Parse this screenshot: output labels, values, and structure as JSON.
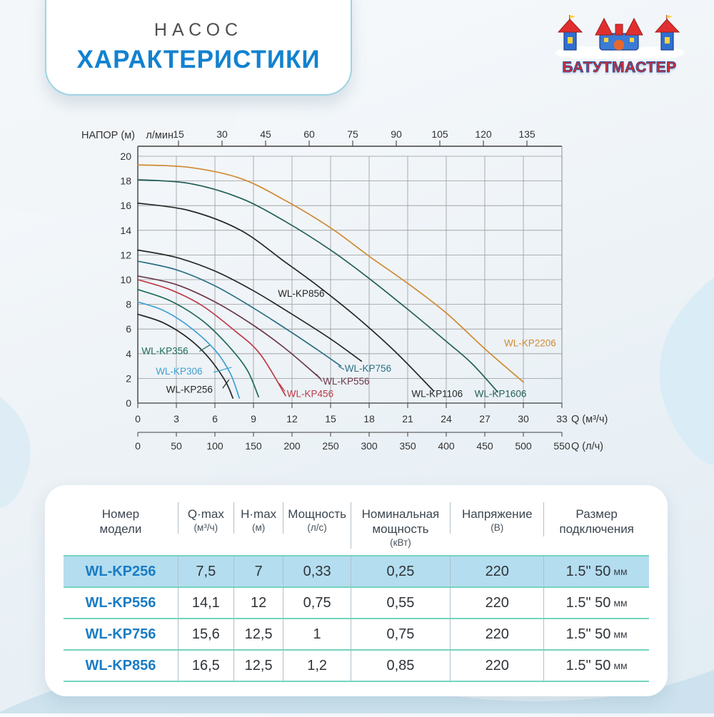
{
  "header": {
    "subtitle": "НАСОС",
    "title": "ХАРАКТЕРИСТИКИ"
  },
  "logo": {
    "name": "БАТУТМАСТЕР"
  },
  "chart_data": {
    "type": "line",
    "y_axis": {
      "label": "НАПОР (м)",
      "min": 0,
      "max": 20,
      "ticks": [
        0,
        2,
        4,
        6,
        8,
        10,
        12,
        14,
        16,
        18,
        20
      ]
    },
    "x_axis_top": {
      "label": "л/мин",
      "ticks": [
        15,
        30,
        45,
        60,
        75,
        90,
        105,
        120,
        135
      ]
    },
    "x_axis_bottom_1": {
      "label": "Q (м³/ч)",
      "ticks": [
        0,
        3,
        6,
        9,
        12,
        15,
        18,
        21,
        24,
        27,
        30,
        33
      ],
      "max": 33
    },
    "x_axis_bottom_2": {
      "label": "Q (л/ч)",
      "ticks": [
        0,
        50,
        100,
        150,
        200,
        250,
        300,
        350,
        400,
        450,
        500,
        550
      ],
      "max": 550
    },
    "grid": true,
    "series": [
      {
        "name": "WL-KP256",
        "color": "#262626",
        "points": [
          [
            0,
            7.2
          ],
          [
            2,
            6.5
          ],
          [
            4,
            5.2
          ],
          [
            5.5,
            3.7
          ],
          [
            6.8,
            1.8
          ],
          [
            7.4,
            0.4
          ]
        ],
        "label": {
          "q": 2.2,
          "h": 0.85
        },
        "leader": [
          [
            6.6,
            1.2
          ],
          [
            7.1,
            1.9
          ]
        ]
      },
      {
        "name": "WL-KP306",
        "color": "#3f9fd0",
        "points": [
          [
            0,
            8.2
          ],
          [
            2,
            7.5
          ],
          [
            4,
            6.2
          ],
          [
            6,
            4.3
          ],
          [
            7.2,
            2.4
          ],
          [
            7.9,
            0.4
          ]
        ],
        "label": {
          "q": 1.4,
          "h": 2.3
        },
        "leader": [
          [
            5.9,
            2.5
          ],
          [
            7.3,
            2.9
          ]
        ]
      },
      {
        "name": "WL-KP356",
        "color": "#1e6b5c",
        "points": [
          [
            0,
            9.2
          ],
          [
            2.5,
            8.3
          ],
          [
            5,
            6.7
          ],
          [
            7,
            4.7
          ],
          [
            8.5,
            2.7
          ],
          [
            9.4,
            0.5
          ]
        ],
        "label": {
          "q": 0.3,
          "h": 3.95
        },
        "leader": [
          [
            4.8,
            4.2
          ],
          [
            5.6,
            4.7
          ]
        ]
      },
      {
        "name": "WL-KP456",
        "color": "#bf3a48",
        "points": [
          [
            0,
            10.0
          ],
          [
            2.5,
            9.2
          ],
          [
            5,
            7.9
          ],
          [
            7.5,
            5.9
          ],
          [
            9.5,
            4.0
          ],
          [
            11.5,
            0.6
          ]
        ],
        "label": {
          "q": 11.6,
          "h": 0.5
        },
        "leader": [
          [
            11.0,
            1.6
          ],
          [
            11.45,
            0.95
          ]
        ]
      },
      {
        "name": "WL-KP556",
        "color": "#6b3a49",
        "points": [
          [
            0,
            10.3
          ],
          [
            3,
            9.6
          ],
          [
            6,
            8.2
          ],
          [
            9,
            6.3
          ],
          [
            11.5,
            4.4
          ],
          [
            14.2,
            2.0
          ]
        ],
        "label": {
          "q": 14.4,
          "h": 1.5
        },
        "leader": [
          [
            13.9,
            2.35
          ],
          [
            14.35,
            1.75
          ]
        ]
      },
      {
        "name": "WL-KP756",
        "color": "#2c7086",
        "points": [
          [
            0,
            11.5
          ],
          [
            3,
            10.8
          ],
          [
            6,
            9.5
          ],
          [
            9,
            7.7
          ],
          [
            12,
            5.7
          ],
          [
            14,
            4.3
          ],
          [
            15.8,
            3.0
          ]
        ],
        "label": {
          "q": 16.1,
          "h": 2.55
        },
        "leader": [
          [
            15.6,
            3.0
          ],
          [
            16.05,
            2.72
          ]
        ]
      },
      {
        "name": "WL-KP856",
        "color": "#262626",
        "points": [
          [
            0,
            12.4
          ],
          [
            3,
            11.8
          ],
          [
            6,
            10.7
          ],
          [
            9,
            9.1
          ],
          [
            12,
            7.2
          ],
          [
            15,
            5.2
          ],
          [
            17.4,
            3.4
          ]
        ],
        "label": {
          "q": 10.9,
          "h": 8.6
        }
      },
      {
        "name": "WL-KP1106",
        "color": "#262626",
        "points": [
          [
            0,
            16.2
          ],
          [
            4,
            15.6
          ],
          [
            8,
            14.0
          ],
          [
            11.5,
            11.4
          ],
          [
            14,
            9.5
          ],
          [
            17,
            7.0
          ],
          [
            20,
            4.2
          ],
          [
            23,
            1.0
          ]
        ],
        "label": {
          "q": 21.3,
          "h": 0.5
        }
      },
      {
        "name": "WL-KP1606",
        "color": "#235f58",
        "points": [
          [
            0,
            18.1
          ],
          [
            4,
            17.8
          ],
          [
            8,
            16.6
          ],
          [
            11.5,
            14.7
          ],
          [
            15,
            12.4
          ],
          [
            18,
            10.1
          ],
          [
            21,
            7.6
          ],
          [
            24,
            5.0
          ],
          [
            26,
            3.2
          ],
          [
            28,
            0.9
          ]
        ],
        "label": {
          "q": 26.2,
          "h": 0.5
        }
      },
      {
        "name": "WL-KP2206",
        "color": "#d08a33",
        "points": [
          [
            0,
            19.3
          ],
          [
            4,
            19.1
          ],
          [
            8,
            18.2
          ],
          [
            11.5,
            16.4
          ],
          [
            15,
            14.2
          ],
          [
            18,
            11.9
          ],
          [
            21,
            9.7
          ],
          [
            24,
            7.3
          ],
          [
            27,
            4.4
          ],
          [
            30,
            1.7
          ]
        ],
        "label": {
          "q": 28.5,
          "h": 4.6
        }
      }
    ]
  },
  "table": {
    "columns": [
      {
        "lines": [
          "Номер",
          "модели"
        ]
      },
      {
        "lines": [
          "Q·max",
          "(м³/ч)"
        ]
      },
      {
        "lines": [
          "H·max",
          "(м)"
        ]
      },
      {
        "lines": [
          "Мощность",
          "(л/с)"
        ]
      },
      {
        "lines": [
          "Номинальная",
          "мощность",
          "(кВт)"
        ]
      },
      {
        "lines": [
          "Напряжение",
          "(В)"
        ]
      },
      {
        "lines": [
          "Размер",
          "подключения"
        ]
      }
    ],
    "rows": [
      [
        "WL-KP256",
        "7,5",
        "7",
        "0,33",
        "0,25",
        "220",
        "1.5\" 50 мм"
      ],
      [
        "WL-KP556",
        "14,1",
        "12",
        "0,75",
        "0,55",
        "220",
        "1.5\" 50 мм"
      ],
      [
        "WL-KP756",
        "15,6",
        "12,5",
        "1",
        "0,75",
        "220",
        "1.5\" 50 мм"
      ],
      [
        "WL-KP856",
        "16,5",
        "12,5",
        "1,2",
        "0,85",
        "220",
        "1.5\" 50 мм"
      ]
    ],
    "highlighted_row": 0
  },
  "colors": {
    "accent_blue": "#1282cf",
    "row_highlight": "#b4ddef",
    "row_separator": "#74d4c0",
    "logo_red": "#dd2b2b",
    "logo_blue": "#2a4f9f"
  }
}
